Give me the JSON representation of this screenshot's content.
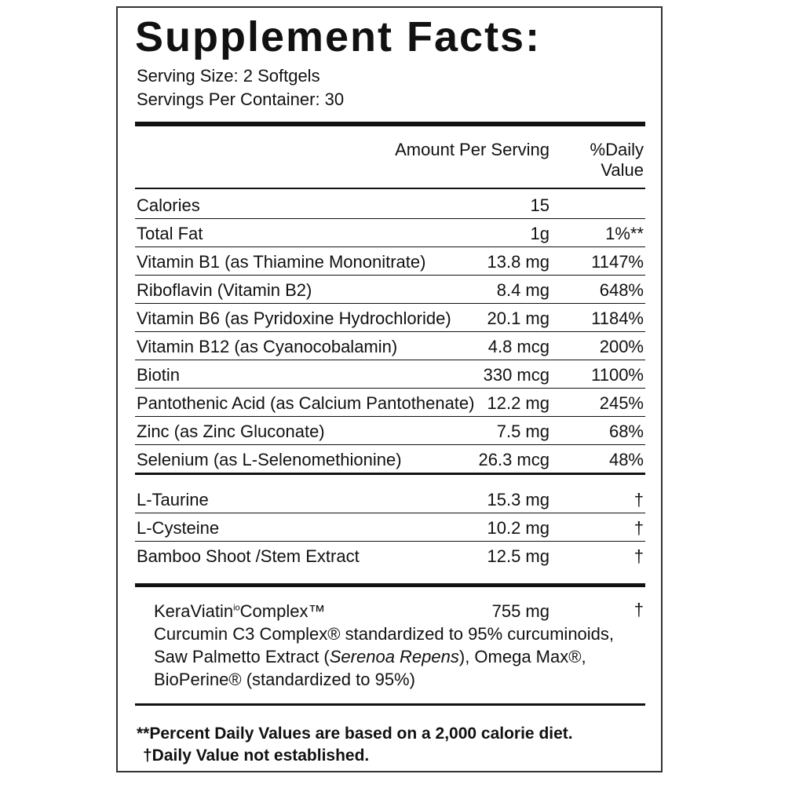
{
  "header": {
    "title": "Supplement Facts:",
    "serving_size": "Serving Size: 2 Softgels",
    "servings_per_container": "Servings Per Container: 30"
  },
  "columns": {
    "amount": "Amount Per Serving",
    "daily_value": [
      "%Daily",
      "Value"
    ]
  },
  "table": {
    "rows": [
      {
        "name": "Calories",
        "amount": "15"
      },
      {
        "name": "Total Fat",
        "amount": "1g",
        "dv": "1%**"
      },
      {
        "name": "Vitamin B1 (as Thiamine Mononitrate)",
        "amount": "13.8 mg",
        "dv": "1147%"
      },
      {
        "name": "Riboflavin (Vitamin B2)",
        "amount": "8.4 mg",
        "dv": "648%"
      },
      {
        "name": "Vitamin B6 (as Pyridoxine Hydrochloride)",
        "amount": "20.1 mg",
        "dv": "1184%"
      },
      {
        "name": "Vitamin B12 (as Cyanocobalamin)",
        "amount": "4.8 mcg",
        "dv": "200%"
      },
      {
        "name": "Biotin",
        "amount": "330 mcg",
        "dv": "1100%"
      },
      {
        "name": "Pantothenic Acid (as Calcium Pantothenate)",
        "amount": "12.2 mg",
        "dv": "245%"
      },
      {
        "name": "Zinc (as Zinc Gluconate)",
        "amount": "7.5 mg",
        "dv": "68%"
      },
      {
        "name": "Selenium (as L-Selenomethionine)",
        "amount": "26.3 mcg",
        "dv": "48%"
      }
    ],
    "other_rows": [
      {
        "name": "L-Taurine",
        "amount": "15.3 mg",
        "dv": "†"
      },
      {
        "name": "L-Cysteine",
        "amount": "10.2 mg",
        "dv": "†"
      },
      {
        "name": "Bamboo Shoot /Stem Extract",
        "amount": "12.5 mg",
        "dv": "†"
      }
    ]
  },
  "blend": {
    "name": "KeraViatin",
    "name_sup": "io",
    "name_rest": "Complex™",
    "amount": "755 mg",
    "dv": "†",
    "line1": "Curcumin C3 Complex® standardized to 95% curcuminoids,",
    "line2": [
      "Saw Palmetto Extract (",
      "Serenoa Repens",
      "), Omega Max®,"
    ],
    "line3": "BioPerine® (standardized to 95%)"
  },
  "footnotes": [
    "**Percent Daily Values are based on a 2,000 calorie diet.",
    "†Daily Value not established."
  ]
}
